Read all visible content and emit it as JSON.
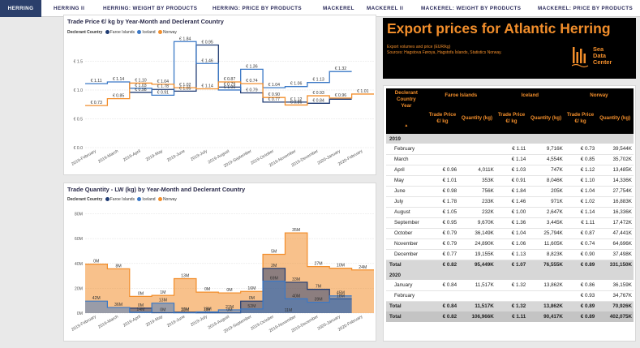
{
  "tabs": [
    {
      "label": "HERRING",
      "active": true
    },
    {
      "label": "HERRING II"
    },
    {
      "label": "HERRING: WEIGHT BY PRODUCTS"
    },
    {
      "label": "HERRING: PRICE BY PRODUCTS"
    },
    {
      "label": "MACKEREL"
    },
    {
      "label": "MACKEREL II"
    },
    {
      "label": "MACKEREL: WEIGHT BY PRODUCTS"
    },
    {
      "label": "MACKEREL: PRICE BY PRODUCTS"
    }
  ],
  "colors": {
    "faroe": "#1f3b73",
    "iceland": "#3a78c6",
    "norway": "#f28e2b",
    "tab_active": "#2b3f6b"
  },
  "price_chart": {
    "title": "Trade Price €/ kg by Year-Month and Declerant Country",
    "legend_title": "Declerant Country",
    "legend": [
      "Faroe Islands",
      "Iceland",
      "Norway"
    ]
  },
  "quantity_chart": {
    "title": "Trade Quantity - LW (kg) by Year-Month and Declerant Country",
    "legend_title": "Declerant Country",
    "legend": [
      "Faroe Islands",
      "Iceland",
      "Norway"
    ]
  },
  "chart_data": [
    {
      "type": "line",
      "step": true,
      "title": "Trade Price €/ kg by Year-Month and Declerant Country",
      "categories": [
        "2019-February",
        "2019-March",
        "2019-April",
        "2019-May",
        "2019-June",
        "2019-July",
        "2019-August",
        "2019-September",
        "2019-October",
        "2019-November",
        "2019-December",
        "2020-January",
        "2020-February"
      ],
      "y_ticks": [
        "€ 0.0",
        "€ 0.5",
        "€ 1.0",
        "€ 1.5"
      ],
      "ylim": [
        0,
        1.9
      ],
      "grid": true,
      "legend_position": "top-left",
      "series": [
        {
          "name": "Faroe Islands",
          "values": [
            null,
            null,
            0.96,
            1.01,
            0.98,
            1.78,
            1.05,
            0.95,
            0.79,
            0.79,
            0.77,
            0.84,
            null
          ]
        },
        {
          "name": "Iceland",
          "values": [
            1.11,
            1.14,
            1.03,
            0.91,
            1.84,
            1.46,
            1.0,
            1.36,
            1.04,
            1.06,
            1.13,
            1.32,
            null
          ]
        },
        {
          "name": "Norway",
          "values": [
            0.73,
            0.85,
            1.12,
            1.1,
            1.04,
            1.02,
            1.14,
            1.11,
            0.87,
            0.74,
            0.9,
            0.86,
            0.93
          ]
        }
      ],
      "data_labels": [
        "€ 1.11",
        "€ 1.14",
        "€ 1.03",
        "€ 0.91",
        "€ 1.84",
        "€ 1.46",
        "€ 1.00",
        "€ 1.36",
        "€ 1.04",
        "€ 1.06",
        "€ 1.13",
        "€ 1.32",
        "€ 0.73",
        "€ 0.85",
        "€ 1.10",
        "€ 1.04",
        "€ 1.02",
        "€ 1.14",
        "€ 0.87",
        "€ 0.74",
        "€ 0.90",
        "€ 0.86",
        "€ 0.93",
        "€ 0.96",
        "€ 1.01",
        "€ 0.98",
        "€ 1.78",
        "€ 1.05",
        "€ 0.95",
        "€ 0.79",
        "€ 0.79",
        "€ 0.77",
        "€ 1.12",
        "€ 0.84"
      ]
    },
    {
      "type": "area",
      "step": true,
      "title": "Trade Quantity - LW (kg) by Year-Month and Declerant Country",
      "categories": [
        "2019-February",
        "2019-March",
        "2019-April",
        "2019-May",
        "2019-June",
        "2019-July",
        "2019-August",
        "2019-September",
        "2019-October",
        "2019-November",
        "2019-December",
        "2020-January",
        "2020-February"
      ],
      "y_ticks": [
        "0M",
        "20M",
        "40M",
        "60M",
        "80M"
      ],
      "ylim": [
        0,
        85
      ],
      "grid": true,
      "legend_position": "top-left",
      "series": [
        {
          "name": "Faroe Islands",
          "values": [
            null,
            null,
            4.0,
            0.35,
            0.76,
            0.23,
            0.23,
            9.67,
            36.1,
            24.9,
            19.2,
            11.5,
            null
          ]
        },
        {
          "name": "Iceland",
          "values": [
            9.7,
            4.55,
            0.75,
            8.05,
            0.21,
            0.97,
            2.65,
            3.4,
            25.8,
            11.6,
            8.8,
            13.9,
            null
          ]
        },
        {
          "name": "Norway",
          "values": [
            39.5,
            35.7,
            13.5,
            14.3,
            27.8,
            16.9,
            16.3,
            17.5,
            47.4,
            64.7,
            37.5,
            36.2,
            34.8
          ]
        }
      ],
      "data_labels": [
        "42M",
        "36M",
        "14M",
        "13M",
        "28M",
        "18M",
        "21M",
        "52M",
        "69M",
        "40M",
        "39M",
        "45M",
        "0M",
        "8M",
        "0M",
        "1M",
        "13M",
        "0M",
        "0M",
        "16M",
        "5M",
        "35M",
        "27M",
        "10M",
        "24M",
        "0M",
        "0M",
        "13M",
        "0M",
        "0M",
        "0M",
        "2M",
        "33M",
        "7M",
        "18M",
        "11M"
      ]
    }
  ],
  "header": {
    "title": "Export prices for Atlantic Herring",
    "subtitle": "Export volumes and price (EUR/kg)",
    "sources": "Sources: Hagstova Føroya, Hagstofa Íslands, Statistics Norway.",
    "logo_text": [
      "Sea",
      "Data",
      "Center"
    ]
  },
  "table": {
    "header": {
      "country_col": "Declerant Country",
      "year_col": "Year",
      "countries": [
        "Faroe Islands",
        "Iceland",
        "Norway"
      ],
      "price_col": "Trade Price €/ kg",
      "qty_col": "Quantity (kg)"
    },
    "groups": [
      {
        "year": "2019",
        "rows": [
          {
            "label": "February",
            "cells": [
              "",
              "",
              "€ 1.11",
              "9,716K",
              "€ 0.73",
              "39,544K"
            ]
          },
          {
            "label": "March",
            "cells": [
              "",
              "",
              "€ 1.14",
              "4,554K",
              "€ 0.85",
              "35,702K"
            ]
          },
          {
            "label": "April",
            "cells": [
              "€ 0.96",
              "4,011K",
              "€ 1.03",
              "747K",
              "€ 1.12",
              "13,485K"
            ]
          },
          {
            "label": "May",
            "cells": [
              "€ 1.01",
              "353K",
              "€ 0.91",
              "8,046K",
              "€ 1.10",
              "14,336K"
            ]
          },
          {
            "label": "June",
            "cells": [
              "€ 0.98",
              "756K",
              "€ 1.84",
              "205K",
              "€ 1.04",
              "27,754K"
            ]
          },
          {
            "label": "July",
            "cells": [
              "€ 1.78",
              "233K",
              "€ 1.46",
              "971K",
              "€ 1.02",
              "16,883K"
            ]
          },
          {
            "label": "August",
            "cells": [
              "€ 1.05",
              "232K",
              "€ 1.00",
              "2,647K",
              "€ 1.14",
              "16,336K"
            ]
          },
          {
            "label": "September",
            "cells": [
              "€ 0.95",
              "9,670K",
              "€ 1.36",
              "3,445K",
              "€ 1.11",
              "17,472K"
            ]
          },
          {
            "label": "October",
            "cells": [
              "€ 0.79",
              "36,149K",
              "€ 1.04",
              "25,794K",
              "€ 0.87",
              "47,441K"
            ]
          },
          {
            "label": "November",
            "cells": [
              "€ 0.79",
              "24,890K",
              "€ 1.06",
              "11,605K",
              "€ 0.74",
              "64,696K"
            ]
          },
          {
            "label": "December",
            "cells": [
              "€ 0.77",
              "19,155K",
              "€ 1.13",
              "8,823K",
              "€ 0.90",
              "37,498K"
            ]
          }
        ],
        "total": {
          "label": "Total",
          "cells": [
            "€ 0.82",
            "95,449K",
            "€ 1.07",
            "76,555K",
            "€ 0.89",
            "331,150K"
          ]
        }
      },
      {
        "year": "2020",
        "rows": [
          {
            "label": "January",
            "cells": [
              "€ 0.84",
              "11,517K",
              "€ 1.32",
              "13,862K",
              "€ 0.86",
              "36,159K"
            ]
          },
          {
            "label": "February",
            "cells": [
              "",
              "",
              "",
              "",
              "€ 0.93",
              "34,767K"
            ]
          }
        ],
        "total": {
          "label": "Total",
          "cells": [
            "€ 0.84",
            "11,517K",
            "€ 1.32",
            "13,862K",
            "€ 0.89",
            "70,926K"
          ]
        }
      }
    ],
    "grand_total": {
      "label": "Total",
      "cells": [
        "€ 0.82",
        "106,966K",
        "€ 1.11",
        "90,417K",
        "€ 0.89",
        "402,075K"
      ]
    }
  }
}
